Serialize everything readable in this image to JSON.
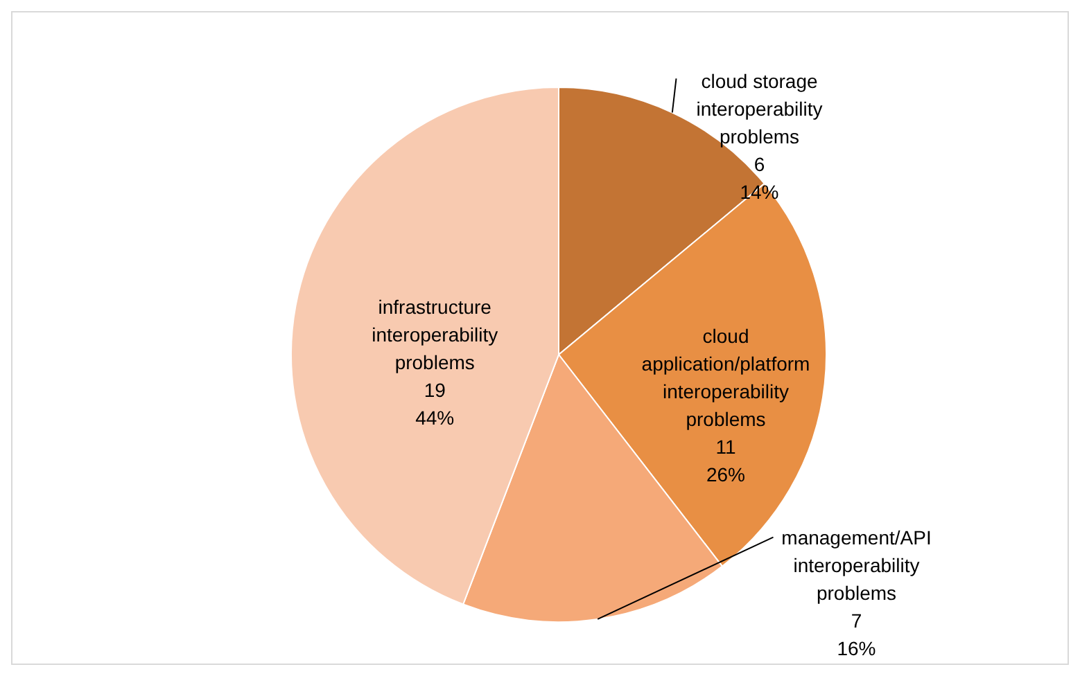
{
  "chart_data": {
    "type": "pie",
    "categories": [
      "cloud storage interoperability problems",
      "cloud application/platform interoperability problems",
      "management/API interoperability problems",
      "infrastructure interoperability problems"
    ],
    "values": [
      6,
      11,
      7,
      19
    ],
    "colors": [
      "#c37434",
      "#e88f44",
      "#f5a978",
      "#f8cab0"
    ],
    "value_labels": [
      "6\n14%",
      "11\n26%",
      "7\n16%",
      "19\n44%"
    ],
    "legend": false
  }
}
